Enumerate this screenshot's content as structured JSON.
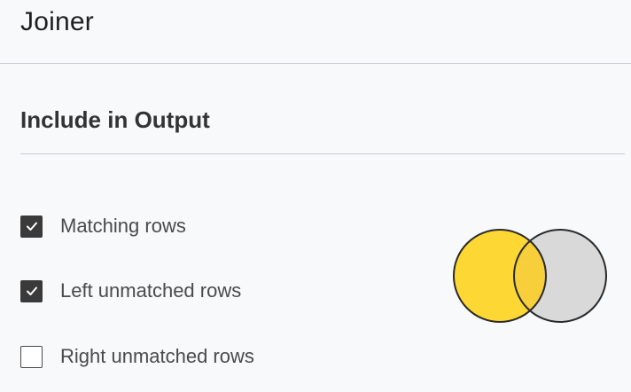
{
  "header": {
    "title": "Joiner"
  },
  "section": {
    "title": "Include in Output"
  },
  "options": [
    {
      "label": "Matching rows",
      "checked": true
    },
    {
      "label": "Left unmatched rows",
      "checked": true
    },
    {
      "label": "Right unmatched rows",
      "checked": false
    }
  ],
  "venn": {
    "left_color": "#fdd835",
    "right_color": "#d9d9d9",
    "overlap_color": "#f7cf3a",
    "outline_color": "#2a2a2a"
  },
  "colors": {
    "background": "#f8f9fb",
    "divider": "#c9ccd1",
    "checkbox_checked": "#3a3a3a"
  }
}
